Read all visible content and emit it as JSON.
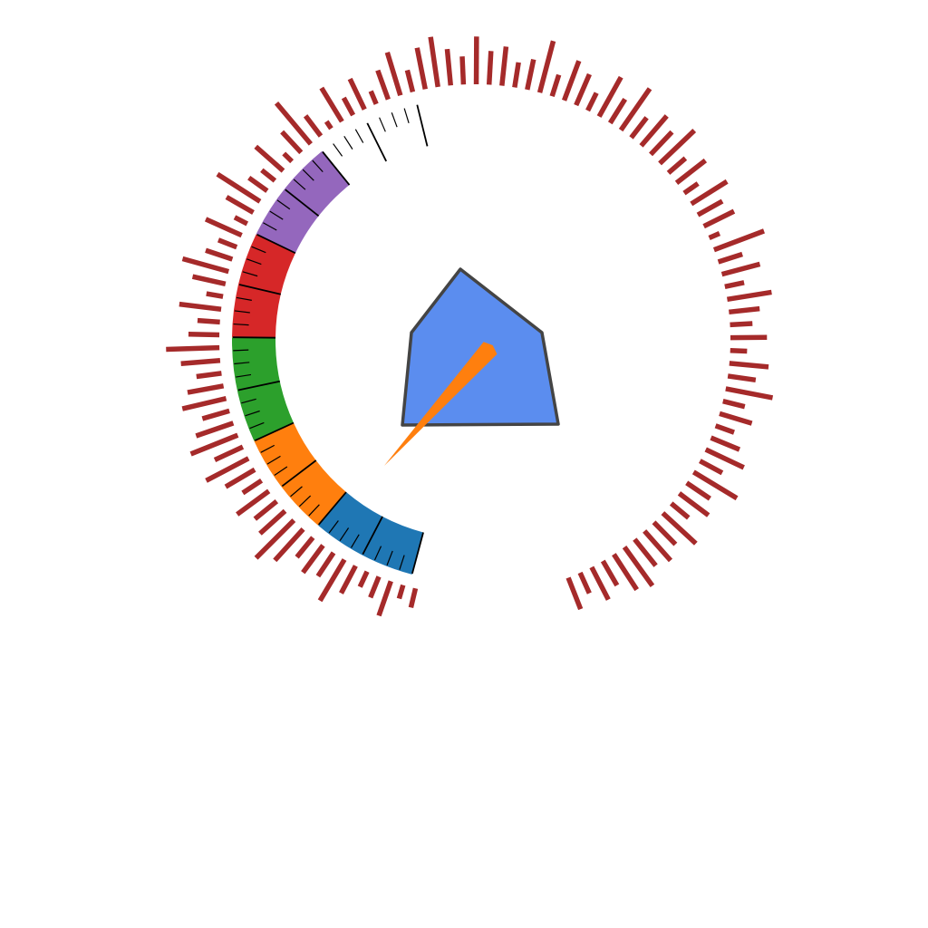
{
  "chart_data": {
    "type": "gauge",
    "title": "",
    "range": [
      0,
      100
    ],
    "value": 15,
    "segments": [
      {
        "from": 0,
        "to": 14,
        "color": "#1f77b4"
      },
      {
        "from": 14,
        "to": 28,
        "color": "#ff7f0e"
      },
      {
        "from": 28,
        "to": 42,
        "color": "#2ca02c"
      },
      {
        "from": 42,
        "to": 56,
        "color": "#d62728"
      },
      {
        "from": 56,
        "to": 70,
        "color": "#9467bd"
      }
    ],
    "unfilled_segment": {
      "from": 70,
      "to": 84
    },
    "ticks": {
      "major_every": 7,
      "minor_every": 1.75,
      "color": "#000000"
    },
    "needle_color": "#ff7f0e",
    "hub": {
      "fill": "#5b8def",
      "stroke": "#444444",
      "shape": "pentagon"
    },
    "outer_bars": {
      "color": "#a52a2a",
      "values": [
        0.35,
        0.25,
        0.65,
        0.4,
        0.3,
        0.55,
        0.85,
        0.5,
        0.6,
        0.45,
        0.75,
        0.95,
        0.6,
        0.5,
        0.7,
        0.4,
        0.6,
        0.85,
        0.55,
        0.9,
        0.7,
        0.5,
        0.8,
        0.65,
        0.45,
        0.7,
        0.95,
        0.55,
        0.4,
        0.75,
        0.3,
        0.6,
        0.85,
        0.5,
        0.35,
        0.7,
        0.25,
        0.55,
        0.9,
        0.4,
        0.3,
        0.65,
        0.2,
        0.5,
        0.95,
        0.45,
        0.15,
        0.7,
        0.35,
        0.6,
        0.25,
        0.55,
        0.8,
        0.4,
        0.75,
        0.9,
        0.65,
        0.5,
        0.85,
        0.6,
        0.7,
        0.45,
        0.55,
        0.95,
        0.4,
        0.75,
        0.6,
        0.35,
        0.8,
        0.5,
        0.9,
        0.45,
        0.7,
        0.55,
        0.85,
        0.4,
        0.65,
        0.3,
        0.75,
        0.5,
        0.6,
        0.2,
        0.95,
        0.45,
        0.7,
        0.35,
        0.8,
        0.55,
        0.4,
        0.65,
        0.3,
        0.7,
        0.5,
        0.85,
        0.4,
        0.6,
        0.35,
        0.55,
        0.75,
        0.45,
        0.9,
        0.5,
        0.65,
        0.4,
        0.8,
        0.55,
        0.7,
        0.6,
        0.85,
        0.75,
        0.5,
        0.65,
        0.4,
        0.6
      ]
    }
  }
}
